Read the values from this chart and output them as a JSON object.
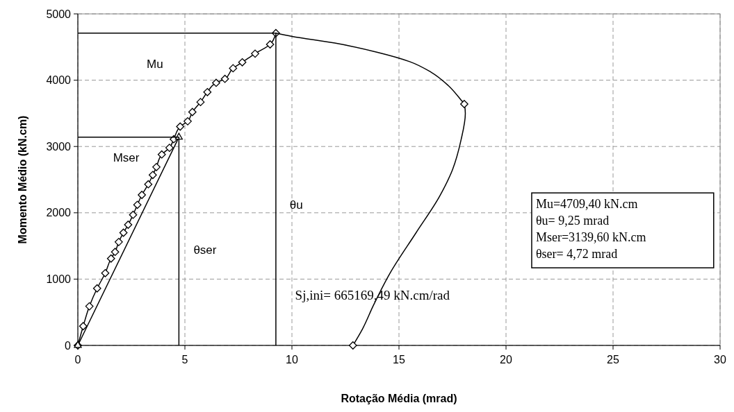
{
  "chart_data": {
    "type": "line",
    "xlabel": "Rotação Média (mrad)",
    "ylabel": "Momento Médio (kN.cm)",
    "xlim": [
      0,
      30
    ],
    "xticks": [
      0,
      5,
      10,
      15,
      20,
      25,
      30
    ],
    "ylim": [
      0,
      5000
    ],
    "yticks": [
      0,
      1000,
      2000,
      3000,
      4000,
      5000
    ],
    "grid": true,
    "series": [
      {
        "type": "line",
        "color": "#000000",
        "marker": "diamond",
        "x": [
          0,
          0.25,
          0.54,
          0.9,
          1.28,
          1.55,
          1.74,
          1.91,
          2.13,
          2.35,
          2.58,
          2.78,
          2.99,
          3.29,
          3.5,
          3.67,
          3.92,
          4.28,
          4.48,
          4.78,
          5.13,
          5.35,
          5.73,
          6.05,
          6.46,
          6.87,
          7.25,
          7.68,
          8.28,
          8.98,
          9.25
        ],
        "values": [
          0,
          290,
          590,
          860,
          1090,
          1310,
          1410,
          1560,
          1700,
          1820,
          1970,
          2120,
          2270,
          2430,
          2570,
          2690,
          2880,
          2980,
          3110,
          3300,
          3380,
          3520,
          3670,
          3820,
          3960,
          4020,
          4180,
          4270,
          4400,
          4540,
          4710
        ]
      },
      {
        "type": "line",
        "color": "#000000",
        "marker": "none",
        "x": [
          9.25,
          10,
          12,
          14,
          15.5,
          16.5,
          17.3,
          17.9,
          18.05,
          18.1,
          17.9,
          17.5,
          16.9,
          15.8,
          14.6,
          13.8,
          13.3,
          12.85
        ],
        "values": [
          4710,
          4660,
          4560,
          4420,
          4280,
          4120,
          3920,
          3700,
          3640,
          3500,
          3100,
          2650,
          2250,
          1700,
          1100,
          600,
          250,
          0
        ]
      },
      {
        "type": "scatter",
        "color": "#000000",
        "marker": "diamond",
        "x": [
          18.05,
          12.85
        ],
        "values": [
          3640,
          0
        ]
      },
      {
        "type": "line",
        "color": "#000000",
        "marker": "triangle",
        "x": [
          0,
          4.72
        ],
        "values": [
          0,
          3140
        ]
      },
      {
        "type": "line",
        "color": "#000000",
        "marker": "none",
        "x": [
          0,
          9.25,
          9.25
        ],
        "values": [
          4710,
          4710,
          0
        ]
      },
      {
        "type": "line",
        "color": "#000000",
        "marker": "none",
        "x": [
          0,
          4.72,
          4.72
        ],
        "values": [
          3140,
          3140,
          0
        ]
      }
    ],
    "annotations": [
      "Mu",
      "Mser",
      "θser",
      "θu",
      "Sj,ini= 665169,49 kN.cm/rad",
      "Mu=4709,40 kN.cm",
      "θu= 9,25 mrad",
      "Mser=3139,60 kN.cm",
      "θser= 4,72 mrad"
    ]
  }
}
